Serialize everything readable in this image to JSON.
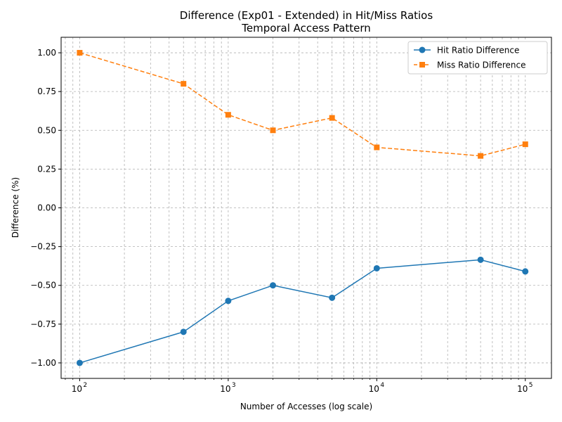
{
  "chart_data": {
    "type": "line",
    "title": "Difference (Exp01 - Extended) in Hit/Miss Ratios",
    "subtitle": "Temporal Access Pattern",
    "xlabel": "Number of Accesses (log scale)",
    "ylabel": "Difference (%)",
    "x_scale": "log",
    "xlim": [
      75,
      150000
    ],
    "ylim": [
      -1.1,
      1.1
    ],
    "grid": "on (major and minor, dashed)",
    "legend_placement": "top-right",
    "x": [
      100,
      500,
      1000,
      2000,
      5000,
      10000,
      50000,
      100000
    ],
    "x_ticks": [
      {
        "value": 100,
        "base": "10",
        "exp": "2"
      },
      {
        "value": 1000,
        "base": "10",
        "exp": "3"
      },
      {
        "value": 10000,
        "base": "10",
        "exp": "4"
      },
      {
        "value": 100000,
        "base": "10",
        "exp": "5"
      }
    ],
    "y_ticks": [
      {
        "value": 1.0,
        "label": "1.00"
      },
      {
        "value": 0.75,
        "label": "0.75"
      },
      {
        "value": 0.5,
        "label": "0.50"
      },
      {
        "value": 0.25,
        "label": "0.25"
      },
      {
        "value": 0.0,
        "label": "0.00"
      },
      {
        "value": -0.25,
        "label": "−0.25"
      },
      {
        "value": -0.5,
        "label": "−0.50"
      },
      {
        "value": -0.75,
        "label": "−0.75"
      },
      {
        "value": -1.0,
        "label": "−1.00"
      }
    ],
    "series": [
      {
        "name": "Hit Ratio Difference",
        "color": "#1f77b4",
        "marker": "circle",
        "line_style": "solid",
        "values": [
          -1.0,
          -0.8,
          -0.6,
          -0.5,
          -0.58,
          -0.39,
          -0.335,
          -0.41
        ]
      },
      {
        "name": "Miss Ratio Difference",
        "color": "#ff7f0e",
        "marker": "square",
        "line_style": "dashed",
        "values": [
          1.0,
          0.8,
          0.6,
          0.5,
          0.58,
          0.39,
          0.335,
          0.41
        ]
      }
    ]
  }
}
